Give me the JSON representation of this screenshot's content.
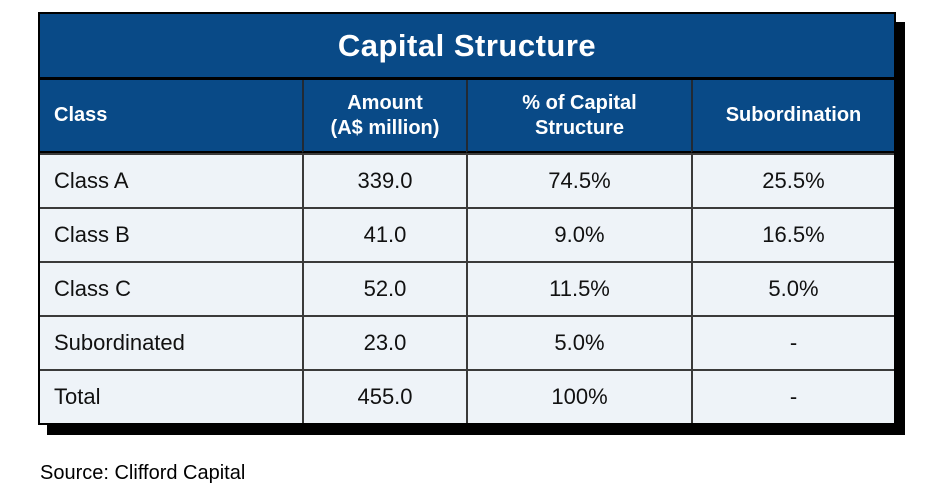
{
  "table": {
    "title": "Capital Structure",
    "columns": [
      {
        "label": "Class"
      },
      {
        "label": "Amount\n(A$ million)"
      },
      {
        "label": "% of Capital\nStructure"
      },
      {
        "label": "Subordination"
      }
    ],
    "rows": [
      {
        "cells": [
          "Class A",
          "339.0",
          "74.5%",
          "25.5%"
        ]
      },
      {
        "cells": [
          "Class B",
          "41.0",
          "9.0%",
          "16.5%"
        ]
      },
      {
        "cells": [
          "Class C",
          "52.0",
          "11.5%",
          "5.0%"
        ]
      },
      {
        "cells": [
          "Subordinated",
          "23.0",
          "5.0%",
          "-"
        ]
      },
      {
        "cells": [
          "Total",
          "455.0",
          "100%",
          "-"
        ]
      }
    ]
  },
  "source_note": "Source: Clifford Capital",
  "colors": {
    "header_blue": "#094a87",
    "row_background": "#eef3f8",
    "inner_border": "#3a3a3a",
    "outer_border": "#000000",
    "shadow": "#000000",
    "header_text": "#ffffff",
    "body_text": "#111111"
  },
  "chart_data": {
    "type": "table",
    "title": "Capital Structure",
    "columns": [
      "Class",
      "Amount (A$ million)",
      "% of Capital Structure",
      "Subordination"
    ],
    "rows": [
      [
        "Class A",
        339.0,
        "74.5%",
        "25.5%"
      ],
      [
        "Class B",
        41.0,
        "9.0%",
        "16.5%"
      ],
      [
        "Class C",
        52.0,
        "11.5%",
        "5.0%"
      ],
      [
        "Subordinated",
        23.0,
        "5.0%",
        "-"
      ],
      [
        "Total",
        455.0,
        "100%",
        "-"
      ]
    ],
    "source": "Source: Clifford Capital"
  }
}
